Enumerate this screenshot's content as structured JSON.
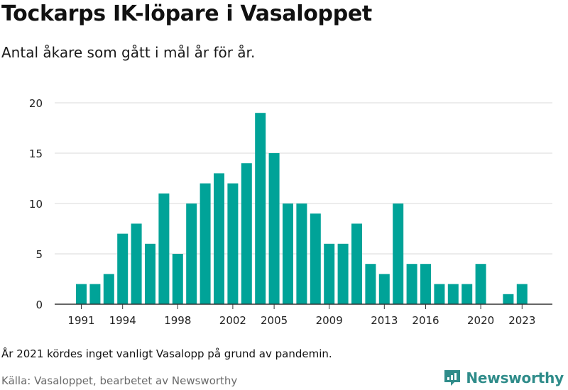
{
  "header": {
    "title": "Tockarps IK-löpare i Vasaloppet",
    "subtitle": "Antal åkare som gått i mål år för år."
  },
  "footer": {
    "note": "År 2021 kördes inget vanligt Vasalopp på grund av pandemin.",
    "source": "Källa: Vasaloppet, bearbetet av Newsworthy",
    "brand": "Newsworthy"
  },
  "colors": {
    "bar": "#00a398",
    "grid": "#d9d9d9",
    "axis": "#333333",
    "brand": "#2f8c8a"
  },
  "chart_data": {
    "type": "bar",
    "title": "Tockarps IK-löpare i Vasaloppet",
    "xlabel": "",
    "ylabel": "",
    "ylim": [
      0,
      20
    ],
    "yticks": [
      0,
      5,
      10,
      15,
      20
    ],
    "xtick_labels": [
      "1991",
      "1994",
      "1998",
      "2002",
      "2005",
      "2009",
      "2013",
      "2016",
      "2020",
      "2023"
    ],
    "grid": true,
    "categories": [
      "1991",
      "1992",
      "1993",
      "1994",
      "1995",
      "1996",
      "1997",
      "1998",
      "1999",
      "2000",
      "2001",
      "2002",
      "2003",
      "2004",
      "2005",
      "2006",
      "2007",
      "2008",
      "2009",
      "2010",
      "2011",
      "2012",
      "2013",
      "2014",
      "2015",
      "2016",
      "2017",
      "2018",
      "2019",
      "2020",
      "2021",
      "2022",
      "2023"
    ],
    "values": [
      2,
      2,
      3,
      7,
      8,
      6,
      11,
      5,
      10,
      12,
      13,
      12,
      14,
      19,
      15,
      10,
      10,
      9,
      6,
      6,
      8,
      4,
      3,
      10,
      4,
      4,
      2,
      2,
      2,
      4,
      0,
      1,
      2
    ]
  }
}
